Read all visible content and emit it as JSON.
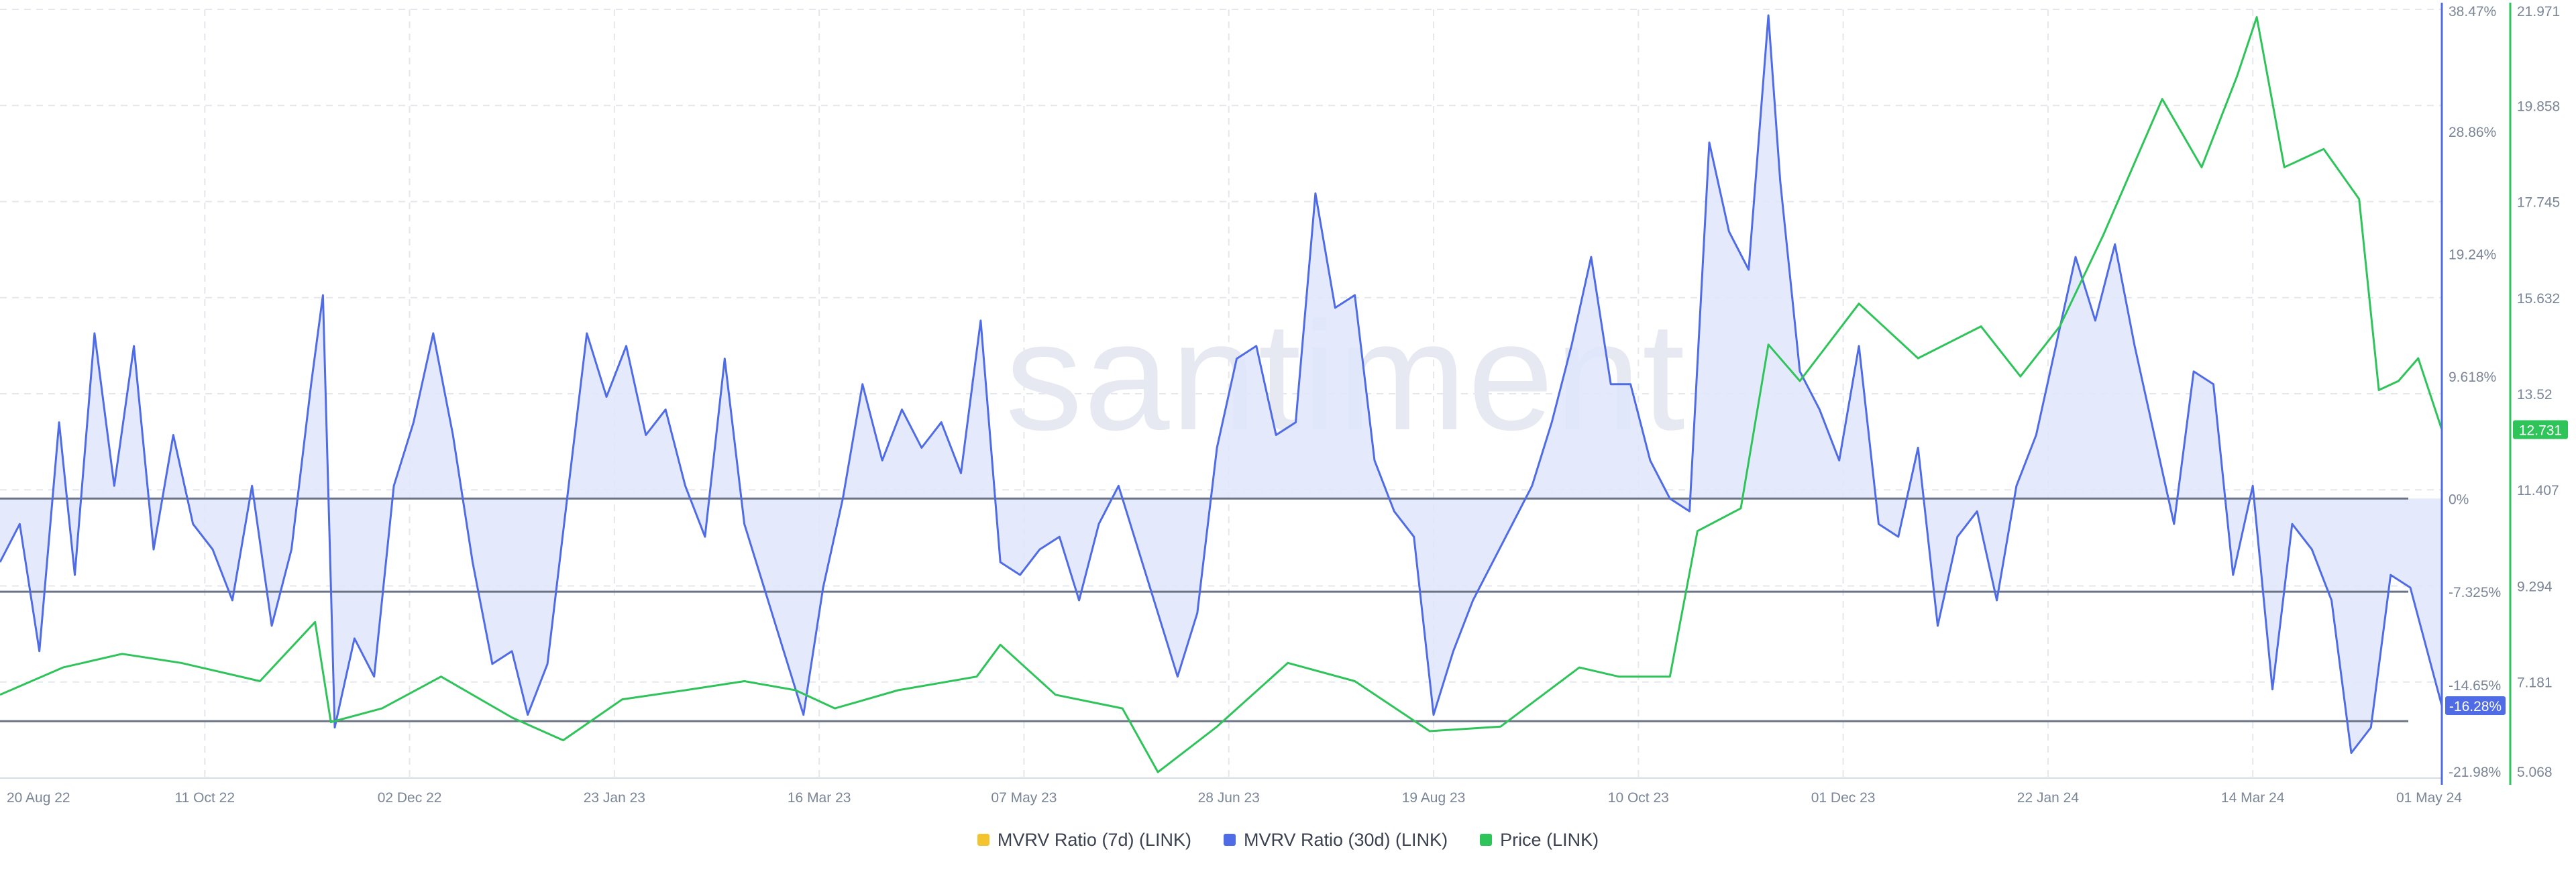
{
  "watermark": "·santiment",
  "colors": {
    "mvrv7d": "#f4c430",
    "mvrv30d": "#4f6be6",
    "price": "#2ec45a",
    "fill": "#dfe6fb",
    "grid": "#e5e7ec",
    "zone": "#6b7486"
  },
  "legend": [
    {
      "name": "MVRV Ratio (7d) (LINK)",
      "color": "#f4c430"
    },
    {
      "name": "MVRV Ratio (30d) (LINK)",
      "color": "#4f6be6"
    },
    {
      "name": "Price (LINK)",
      "color": "#2ec45a"
    }
  ],
  "chart_data": {
    "type": "line",
    "x_ticks": [
      "20 Aug 22",
      "11 Oct 22",
      "02 Dec 22",
      "23 Jan 23",
      "16 Mar 23",
      "07 May 23",
      "28 Jun 23",
      "19 Aug 23",
      "10 Oct 23",
      "01 Dec 23",
      "22 Jan 24",
      "14 Mar 24",
      "01 May 24"
    ],
    "x_range": [
      "2022-08-20",
      "2024-05-01"
    ],
    "y_left_ticks": [
      "38.47%",
      "28.86%",
      "19.24%",
      "9.618%",
      "0%",
      "-7.325%",
      "-14.65%",
      "-21.98%"
    ],
    "y_left_values": [
      38.47,
      28.86,
      19.24,
      9.618,
      0,
      -7.325,
      -14.65,
      -21.98
    ],
    "y_left_range": [
      -21.98,
      38.47
    ],
    "y_right_ticks": [
      "21.971",
      "19.858",
      "17.745",
      "15.632",
      "13.52",
      "11.407",
      "9.294",
      "7.181",
      "5.068"
    ],
    "y_right_range": [
      5.068,
      21.971
    ],
    "zone_lines": [
      0,
      -7.325,
      -17.5
    ],
    "last_value_labels": {
      "mvrv30d": "-16.28%",
      "price": "12.731"
    },
    "series": [
      {
        "name": "MVRV Ratio (30d) (LINK)",
        "axis": "left",
        "points": [
          [
            "2022-08-20",
            -5
          ],
          [
            "2022-08-25",
            -2
          ],
          [
            "2022-08-30",
            -12
          ],
          [
            "2022-09-04",
            6
          ],
          [
            "2022-09-08",
            -6
          ],
          [
            "2022-09-13",
            13
          ],
          [
            "2022-09-18",
            1
          ],
          [
            "2022-09-23",
            12
          ],
          [
            "2022-09-28",
            -4
          ],
          [
            "2022-10-03",
            5
          ],
          [
            "2022-10-08",
            -2
          ],
          [
            "2022-10-13",
            -4
          ],
          [
            "2022-10-18",
            -8
          ],
          [
            "2022-10-23",
            1
          ],
          [
            "2022-10-28",
            -10
          ],
          [
            "2022-11-02",
            -4
          ],
          [
            "2022-11-07",
            9
          ],
          [
            "2022-11-10",
            16
          ],
          [
            "2022-11-13",
            -18
          ],
          [
            "2022-11-18",
            -11
          ],
          [
            "2022-11-23",
            -14
          ],
          [
            "2022-11-28",
            1
          ],
          [
            "2022-12-03",
            6
          ],
          [
            "2022-12-08",
            13
          ],
          [
            "2022-12-13",
            5
          ],
          [
            "2022-12-18",
            -5
          ],
          [
            "2022-12-23",
            -13
          ],
          [
            "2022-12-28",
            -12
          ],
          [
            "2023-01-01",
            -17
          ],
          [
            "2023-01-06",
            -13
          ],
          [
            "2023-01-11",
            0
          ],
          [
            "2023-01-16",
            13
          ],
          [
            "2023-01-21",
            8
          ],
          [
            "2023-01-26",
            12
          ],
          [
            "2023-01-31",
            5
          ],
          [
            "2023-02-05",
            7
          ],
          [
            "2023-02-10",
            1
          ],
          [
            "2023-02-15",
            -3
          ],
          [
            "2023-02-20",
            11
          ],
          [
            "2023-02-25",
            -2
          ],
          [
            "2023-03-02",
            -7
          ],
          [
            "2023-03-07",
            -12
          ],
          [
            "2023-03-12",
            -17
          ],
          [
            "2023-03-17",
            -7
          ],
          [
            "2023-03-22",
            0
          ],
          [
            "2023-03-27",
            9
          ],
          [
            "2023-04-01",
            3
          ],
          [
            "2023-04-06",
            7
          ],
          [
            "2023-04-11",
            4
          ],
          [
            "2023-04-16",
            6
          ],
          [
            "2023-04-21",
            2
          ],
          [
            "2023-04-26",
            14
          ],
          [
            "2023-05-01",
            -5
          ],
          [
            "2023-05-06",
            -6
          ],
          [
            "2023-05-11",
            -4
          ],
          [
            "2023-05-16",
            -3
          ],
          [
            "2023-05-21",
            -8
          ],
          [
            "2023-05-26",
            -2
          ],
          [
            "2023-05-31",
            1
          ],
          [
            "2023-06-05",
            -4
          ],
          [
            "2023-06-10",
            -9
          ],
          [
            "2023-06-15",
            -14
          ],
          [
            "2023-06-20",
            -9
          ],
          [
            "2023-06-25",
            4
          ],
          [
            "2023-06-30",
            11
          ],
          [
            "2023-07-05",
            12
          ],
          [
            "2023-07-10",
            5
          ],
          [
            "2023-07-15",
            6
          ],
          [
            "2023-07-20",
            24
          ],
          [
            "2023-07-25",
            15
          ],
          [
            "2023-07-30",
            16
          ],
          [
            "2023-08-04",
            3
          ],
          [
            "2023-08-09",
            -1
          ],
          [
            "2023-08-14",
            -3
          ],
          [
            "2023-08-19",
            -17
          ],
          [
            "2023-08-24",
            -12
          ],
          [
            "2023-08-29",
            -8
          ],
          [
            "2023-09-03",
            -5
          ],
          [
            "2023-09-08",
            -2
          ],
          [
            "2023-09-13",
            1
          ],
          [
            "2023-09-18",
            6
          ],
          [
            "2023-09-23",
            12
          ],
          [
            "2023-09-28",
            19
          ],
          [
            "2023-10-03",
            9
          ],
          [
            "2023-10-08",
            9
          ],
          [
            "2023-10-13",
            3
          ],
          [
            "2023-10-18",
            0
          ],
          [
            "2023-10-23",
            -1
          ],
          [
            "2023-10-28",
            28
          ],
          [
            "2023-11-02",
            21
          ],
          [
            "2023-11-07",
            18
          ],
          [
            "2023-11-12",
            38
          ],
          [
            "2023-11-15",
            25
          ],
          [
            "2023-11-20",
            10
          ],
          [
            "2023-11-25",
            7
          ],
          [
            "2023-11-30",
            3
          ],
          [
            "2023-12-05",
            12
          ],
          [
            "2023-12-10",
            -2
          ],
          [
            "2023-12-15",
            -3
          ],
          [
            "2023-12-20",
            4
          ],
          [
            "2023-12-25",
            -10
          ],
          [
            "2023-12-30",
            -3
          ],
          [
            "2024-01-04",
            -1
          ],
          [
            "2024-01-09",
            -8
          ],
          [
            "2024-01-14",
            1
          ],
          [
            "2024-01-19",
            5
          ],
          [
            "2024-01-24",
            12
          ],
          [
            "2024-01-29",
            19
          ],
          [
            "2024-02-03",
            14
          ],
          [
            "2024-02-08",
            20
          ],
          [
            "2024-02-13",
            12
          ],
          [
            "2024-02-18",
            5
          ],
          [
            "2024-02-23",
            -2
          ],
          [
            "2024-02-28",
            10
          ],
          [
            "2024-03-04",
            9
          ],
          [
            "2024-03-09",
            -6
          ],
          [
            "2024-03-14",
            1
          ],
          [
            "2024-03-19",
            -15
          ],
          [
            "2024-03-24",
            -2
          ],
          [
            "2024-03-29",
            -4
          ],
          [
            "2024-04-03",
            -8
          ],
          [
            "2024-04-08",
            -20
          ],
          [
            "2024-04-13",
            -18
          ],
          [
            "2024-04-18",
            -6
          ],
          [
            "2024-04-23",
            -7
          ],
          [
            "2024-05-01",
            -16.28
          ]
        ]
      },
      {
        "name": "Price (LINK)",
        "axis": "right",
        "points": [
          [
            "2022-08-20",
            6.9
          ],
          [
            "2022-09-05",
            7.5
          ],
          [
            "2022-09-20",
            7.8
          ],
          [
            "2022-10-05",
            7.6
          ],
          [
            "2022-10-25",
            7.2
          ],
          [
            "2022-11-08",
            8.5
          ],
          [
            "2022-11-12",
            6.3
          ],
          [
            "2022-11-25",
            6.6
          ],
          [
            "2022-12-10",
            7.3
          ],
          [
            "2022-12-28",
            6.4
          ],
          [
            "2023-01-10",
            5.9
          ],
          [
            "2023-01-25",
            6.8
          ],
          [
            "2023-02-10",
            7.0
          ],
          [
            "2023-02-25",
            7.2
          ],
          [
            "2023-03-10",
            7.0
          ],
          [
            "2023-03-20",
            6.6
          ],
          [
            "2023-04-05",
            7.0
          ],
          [
            "2023-04-25",
            7.3
          ],
          [
            "2023-05-01",
            8.0
          ],
          [
            "2023-05-15",
            6.9
          ],
          [
            "2023-06-01",
            6.6
          ],
          [
            "2023-06-10",
            5.2
          ],
          [
            "2023-06-25",
            6.2
          ],
          [
            "2023-07-13",
            7.6
          ],
          [
            "2023-07-30",
            7.2
          ],
          [
            "2023-08-18",
            6.1
          ],
          [
            "2023-09-05",
            6.2
          ],
          [
            "2023-09-25",
            7.5
          ],
          [
            "2023-10-05",
            7.3
          ],
          [
            "2023-10-18",
            7.3
          ],
          [
            "2023-10-25",
            10.5
          ],
          [
            "2023-11-05",
            11.0
          ],
          [
            "2023-11-12",
            14.6
          ],
          [
            "2023-11-20",
            13.8
          ],
          [
            "2023-12-05",
            15.5
          ],
          [
            "2023-12-20",
            14.3
          ],
          [
            "2024-01-05",
            15.0
          ],
          [
            "2024-01-15",
            13.9
          ],
          [
            "2024-01-25",
            15.0
          ],
          [
            "2024-02-05",
            17.0
          ],
          [
            "2024-02-20",
            20.0
          ],
          [
            "2024-03-01",
            18.5
          ],
          [
            "2024-03-10",
            20.5
          ],
          [
            "2024-03-15",
            21.8
          ],
          [
            "2024-03-22",
            18.5
          ],
          [
            "2024-04-01",
            18.9
          ],
          [
            "2024-04-10",
            17.8
          ],
          [
            "2024-04-15",
            13.6
          ],
          [
            "2024-04-20",
            13.8
          ],
          [
            "2024-04-25",
            14.3
          ],
          [
            "2024-05-01",
            12.731
          ]
        ]
      }
    ]
  }
}
